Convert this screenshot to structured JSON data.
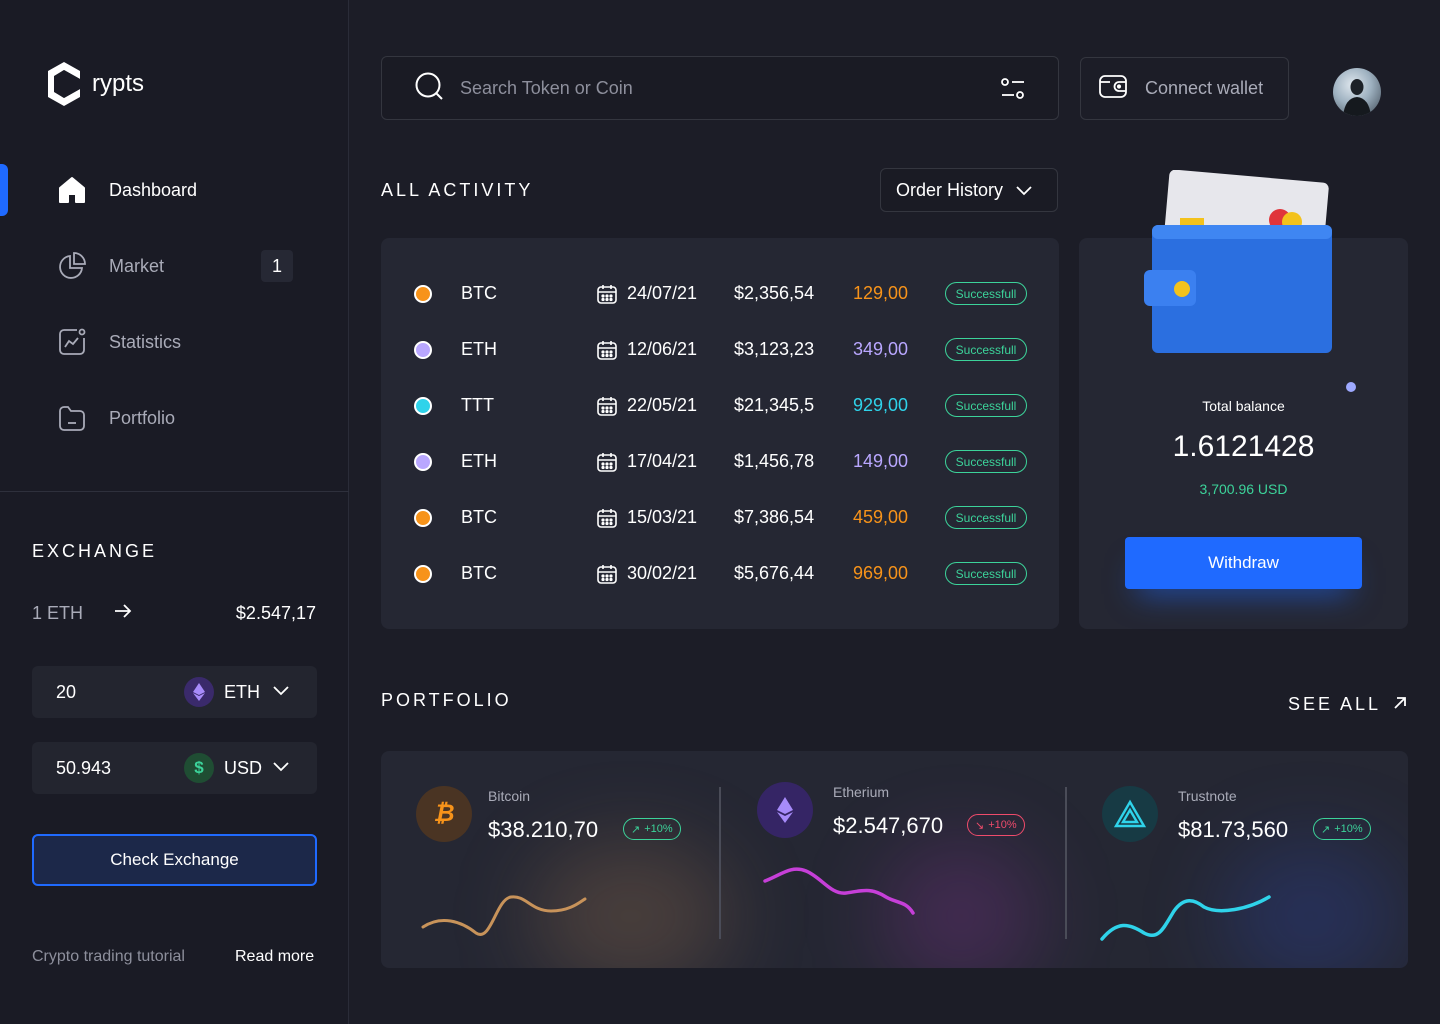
{
  "brand": {
    "name": "rypts"
  },
  "nav": [
    {
      "label": "Dashboard",
      "icon": "home-icon",
      "active": true
    },
    {
      "label": "Market",
      "icon": "pie-chart-icon",
      "badge": "1"
    },
    {
      "label": "Statistics",
      "icon": "statistics-icon"
    },
    {
      "label": "Portfolio",
      "icon": "folder-icon"
    }
  ],
  "exchange": {
    "title": "EXCHANGE",
    "from": "1 ETH",
    "to": "$2.547,17",
    "fields": [
      {
        "value": "20",
        "currency": "ETH",
        "icon": "ethereum-icon"
      },
      {
        "value": "50.943",
        "currency": "USD",
        "icon": "dollar-icon"
      }
    ],
    "button": "Check Exchange",
    "tutorial": "Crypto trading tutorial",
    "read_more": "Read more"
  },
  "search": {
    "placeholder": "Search Token or Coin"
  },
  "wallet": {
    "label": "Connect wallet"
  },
  "activity": {
    "title": "ALL ACTIVITY",
    "filter": "Order History",
    "rows": [
      {
        "symbol": "BTC",
        "date": "24/07/21",
        "amount": "$2,356,54",
        "qty": "129,00",
        "status": "Successfull",
        "color": "#f7931a"
      },
      {
        "symbol": "ETH",
        "date": "12/06/21",
        "amount": "$3,123,23",
        "qty": "349,00",
        "status": "Successfull",
        "color": "#b9a7ff"
      },
      {
        "symbol": "TTT",
        "date": "22/05/21",
        "amount": "$21,345,5",
        "qty": "929,00",
        "status": "Successfull",
        "color": "#2fd3ea"
      },
      {
        "symbol": "ETH",
        "date": "17/04/21",
        "amount": "$1,456,78",
        "qty": "149,00",
        "status": "Successfull",
        "color": "#b9a7ff"
      },
      {
        "symbol": "BTC",
        "date": "15/03/21",
        "amount": "$7,386,54",
        "qty": "459,00",
        "status": "Successfull",
        "color": "#f7931a"
      },
      {
        "symbol": "BTC",
        "date": "30/02/21",
        "amount": "$5,676,44",
        "qty": "969,00",
        "status": "Successfull",
        "color": "#f7931a"
      }
    ]
  },
  "balance": {
    "label": "Total balance",
    "value": "1.6121428",
    "usd": "3,700.96 USD",
    "button": "Withdraw"
  },
  "portfolio": {
    "title": "PORTFOLIO",
    "see_all": "SEE ALL",
    "coins": [
      {
        "name": "Bitcoin",
        "price": "$38.210,70",
        "change": "+10%",
        "direction": "up",
        "color": "#c8935a"
      },
      {
        "name": "Etherium",
        "price": "$2.547,670",
        "change": "+10%",
        "direction": "down",
        "color": "#c63fd8"
      },
      {
        "name": "Trustnote",
        "price": "$81.73,560",
        "change": "+10%",
        "direction": "up",
        "color": "#2fd3ea"
      }
    ]
  }
}
